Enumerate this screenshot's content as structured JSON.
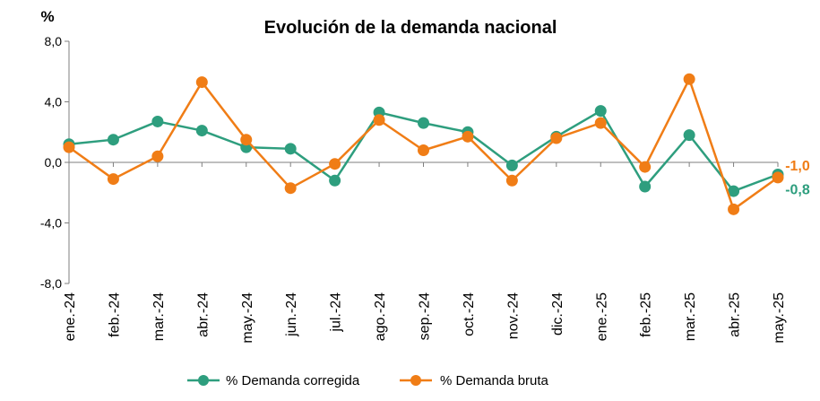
{
  "chart_data": {
    "type": "line",
    "title": "Evolución de la demanda nacional",
    "ylabel": "%",
    "xlabel": "",
    "ylim": [
      -8,
      8
    ],
    "yticks": [
      -8,
      -4,
      0,
      4,
      8
    ],
    "ytick_labels": [
      "-8,0",
      "-4,0",
      "0,0",
      "4,0",
      "8,0"
    ],
    "categories": [
      "ene.-24",
      "feb.-24",
      "mar.-24",
      "abr.-24",
      "may.-24",
      "jun.-24",
      "jul.-24",
      "ago.-24",
      "sep.-24",
      "oct.-24",
      "nov.-24",
      "dic.-24",
      "ene.-25",
      "feb.-25",
      "mar.-25",
      "abr.-25",
      "may.-25"
    ],
    "grid": false,
    "legend": "bottom",
    "series": [
      {
        "name": "% Demanda corregida",
        "color": "#2e9e7e",
        "values": [
          1.2,
          1.5,
          2.7,
          2.1,
          1.0,
          0.9,
          -1.2,
          3.3,
          2.6,
          2.0,
          -0.2,
          1.7,
          3.4,
          -1.6,
          1.8,
          -1.9,
          -0.8
        ],
        "end_label": "-0,8"
      },
      {
        "name": "% Demanda bruta",
        "color": "#f07d16",
        "values": [
          1.0,
          -1.1,
          0.4,
          5.3,
          1.5,
          -1.7,
          -0.1,
          2.8,
          0.8,
          1.7,
          -1.2,
          1.6,
          2.6,
          -0.3,
          5.5,
          -3.1,
          -1.0
        ],
        "end_label": "-1,0"
      }
    ]
  }
}
